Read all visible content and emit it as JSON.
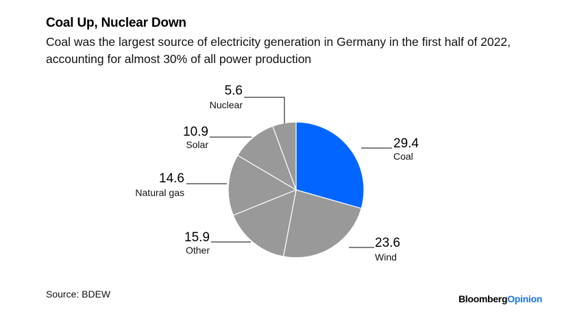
{
  "title": "Coal Up, Nuclear Down",
  "subtitle": "Coal was the largest source of electricity generation in Germany in the first half of 2022, accounting for almost 30% of all power production",
  "source": "Source: BDEW",
  "brand": {
    "name": "Bloomberg",
    "suffix": "Opinion"
  },
  "colors": {
    "highlight": "#0066ff",
    "default": "#999999",
    "stroke": "#ffffff",
    "leader": "#000000"
  },
  "chart_data": {
    "type": "pie",
    "title": "Coal Up, Nuclear Down",
    "start": "12 o'clock, clockwise",
    "slices": [
      {
        "label": "Coal",
        "value": 29.4,
        "highlight": true
      },
      {
        "label": "Wind",
        "value": 23.6,
        "highlight": false
      },
      {
        "label": "Other",
        "value": 15.9,
        "highlight": false
      },
      {
        "label": "Natural gas",
        "value": 14.6,
        "highlight": false
      },
      {
        "label": "Solar",
        "value": 10.9,
        "highlight": false
      },
      {
        "label": "Nuclear",
        "value": 5.6,
        "highlight": false
      }
    ]
  }
}
